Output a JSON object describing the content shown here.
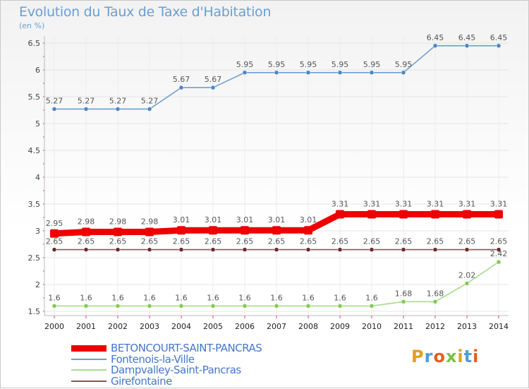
{
  "page": {
    "title": "Evolution du Taux de Taxe d'Habitation",
    "unit": "(en %)"
  },
  "chart_data": {
    "type": "line",
    "title": "Evolution du Taux de Taxe d'Habitation",
    "ylabel": "(en %)",
    "xlabel": "",
    "x": [
      2000,
      2001,
      2002,
      2003,
      2004,
      2005,
      2006,
      2007,
      2008,
      2009,
      2010,
      2011,
      2012,
      2013,
      2014
    ],
    "ylim": [
      1.5,
      6.5
    ],
    "yticks": [
      "1.5",
      "2",
      "2.5",
      "3",
      "3.5",
      "4",
      "4.5",
      "5",
      "5.5",
      "6",
      "6.5"
    ],
    "grid": true,
    "legend_position": "bottom-left",
    "series": [
      {
        "name": "BETONCOURT-SAINT-PANCRAS",
        "color": "#ee0000",
        "values": [
          2.95,
          2.98,
          2.98,
          2.98,
          3.01,
          3.01,
          3.01,
          3.01,
          3.01,
          3.31,
          3.31,
          3.31,
          3.31,
          3.31,
          3.31
        ],
        "labels": [
          "2.95",
          "2.98",
          "2.98",
          "2.98",
          "3.01",
          "3.01",
          "3.01",
          "3.01",
          "3.01",
          "3.31",
          "3.31",
          "3.31",
          "3.31",
          "3.31",
          "3.31"
        ]
      },
      {
        "name": "Fontenois-la-Ville",
        "color": "#6b9fd3",
        "point_color": "#4a86c4",
        "values": [
          5.27,
          5.27,
          5.27,
          5.27,
          5.67,
          5.67,
          5.95,
          5.95,
          5.95,
          5.95,
          5.95,
          5.95,
          6.45,
          6.45,
          6.45
        ],
        "labels": [
          "5.27",
          "5.27",
          "5.27",
          "5.27",
          "5.67",
          "5.67",
          "5.95",
          "5.95",
          "5.95",
          "5.95",
          "5.95",
          "5.95",
          "6.45",
          "6.45",
          "6.45"
        ]
      },
      {
        "name": "Dampvalley-Saint-Pancras",
        "color": "#a8dc8a",
        "point_color": "#7fcc4f",
        "values": [
          1.6,
          1.6,
          1.6,
          1.6,
          1.6,
          1.6,
          1.6,
          1.6,
          1.6,
          1.6,
          1.6,
          1.68,
          1.68,
          2.02,
          2.42
        ],
        "labels": [
          "1.6",
          "1.6",
          "1.6",
          "1.6",
          "1.6",
          "1.6",
          "1.6",
          "1.6",
          "1.6",
          "1.6",
          "1.6",
          "1.68",
          "1.68",
          "2.02",
          "2.42"
        ]
      },
      {
        "name": "Girefontaine",
        "color": "#8a5555",
        "point_color": "#6b2a2a",
        "values": [
          2.65,
          2.65,
          2.65,
          2.65,
          2.65,
          2.65,
          2.65,
          2.65,
          2.65,
          2.65,
          2.65,
          2.65,
          2.65,
          2.65,
          2.65
        ],
        "labels": [
          "2.65",
          "2.65",
          "2.65",
          "2.65",
          "2.65",
          "2.65",
          "2.65",
          "2.65",
          "2.65",
          "2.65",
          "2.65",
          "2.65",
          "2.65",
          "2.65",
          "2.65"
        ]
      }
    ]
  },
  "legend": {
    "items": [
      {
        "label": "BETONCOURT-SAINT-PANCRAS",
        "color": "#ee0000"
      },
      {
        "label": "Fontenois-la-Ville",
        "color": "#6b9fd3"
      },
      {
        "label": "Dampvalley-Saint-Pancras",
        "color": "#a8dc8a"
      },
      {
        "label": "Girefontaine",
        "color": "#8a5555"
      }
    ]
  },
  "logo": {
    "text": "Proxiti",
    "letter_colors": [
      "#e0a020",
      "#4aa0d8",
      "#e06020",
      "#7ac040",
      "#e0a020",
      "#4aa0d8",
      "#e06020"
    ]
  }
}
